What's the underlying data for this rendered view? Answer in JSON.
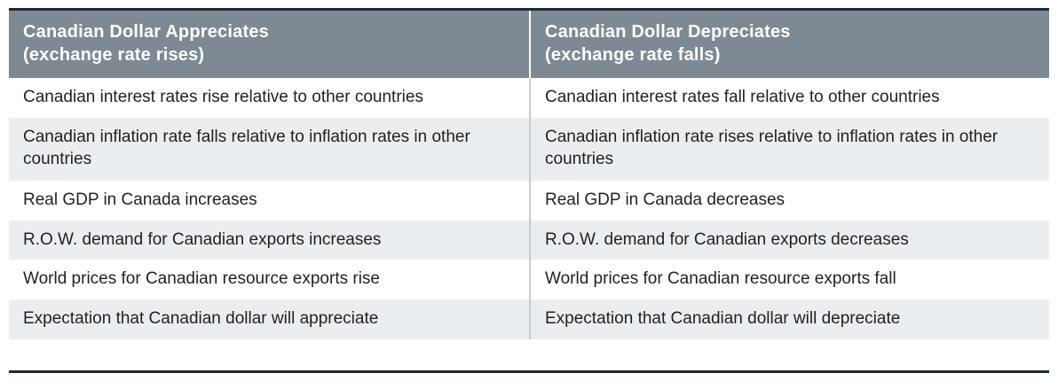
{
  "table": {
    "columns": [
      {
        "title": "Canadian Dollar Appreciates",
        "subtitle": "(exchange rate rises)"
      },
      {
        "title": "Canadian Dollar Depreciates",
        "subtitle": "(exchange rate falls)"
      }
    ],
    "rows": [
      [
        "Canadian interest rates rise relative to other countries",
        "Canadian interest rates fall relative to other countries"
      ],
      [
        "Canadian inflation rate falls relative to inflation rates in other countries",
        "Canadian inflation rate rises relative to inflation rates in other countries"
      ],
      [
        "Real GDP in Canada increases",
        "Real GDP in Canada decreases"
      ],
      [
        "R.O.W. demand for Canadian exports increases",
        "R.O.W. demand for Canadian exports decreases"
      ],
      [
        "World prices for Canadian resource exports rise",
        "World prices for Canadian resource exports fall"
      ],
      [
        "Expectation that Canadian dollar will appreciate",
        "Expectation that Canadian dollar will depreciate"
      ]
    ]
  },
  "colors": {
    "header_bg": "#7d8a94",
    "header_text": "#ffffff",
    "row_alt_bg": "#ebeef0",
    "border_dark": "#1d2b35",
    "body_text": "#231f20",
    "body_divider": "#c7ccd0"
  }
}
